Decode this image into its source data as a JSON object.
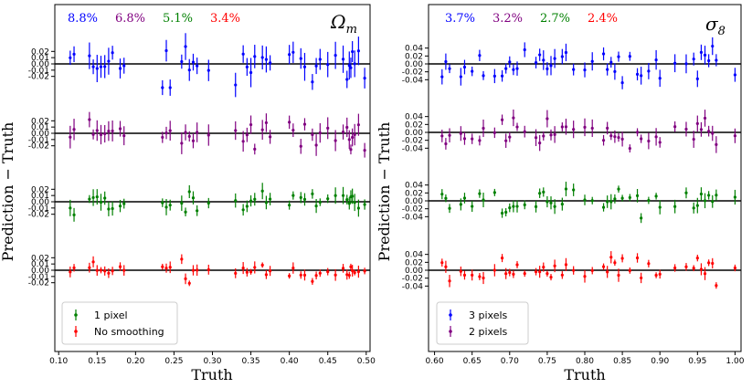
{
  "chart_data": [
    {
      "type": "scatter",
      "title": "Ωm",
      "title_main": "Ω",
      "title_sub": "m",
      "xlabel": "Truth",
      "ylabel": "Prediction − Truth",
      "xlim": [
        0.095,
        0.505
      ],
      "xticks": [
        "0.10",
        "0.15",
        "0.20",
        "0.25",
        "0.30",
        "0.35",
        "0.40",
        "0.45",
        "0.50"
      ],
      "xtick_values": [
        0.1,
        0.15,
        0.2,
        0.25,
        0.3,
        0.35,
        0.4,
        0.45,
        0.5
      ],
      "offset_ticks": [
        0.02,
        0.01,
        0.0,
        -0.01,
        -0.02
      ],
      "offset_tick_labels": [
        "0.02",
        "0.01",
        "0.00",
        "-0.01",
        "-0.02"
      ],
      "half_range": 0.038,
      "seed": 11,
      "errors": [
        {
          "label": "8.8%",
          "color": "#0000ff"
        },
        {
          "label": "6.8%",
          "color": "#800080"
        },
        {
          "label": "5.1%",
          "color": "#008000"
        },
        {
          "label": "3.4%",
          "color": "#ff0000"
        }
      ],
      "series": [
        {
          "name": "3 pixels",
          "color": "#0000ff",
          "scatter": 0.018,
          "err": 0.017
        },
        {
          "name": "2 pixels",
          "color": "#800080",
          "scatter": 0.014,
          "err": 0.013
        },
        {
          "name": "1 pixel",
          "color": "#008000",
          "scatter": 0.011,
          "err": 0.01
        },
        {
          "name": "No smoothing",
          "color": "#ff0000",
          "scatter": 0.008,
          "err": 0.007
        }
      ],
      "x": [
        0.115,
        0.12,
        0.14,
        0.145,
        0.15,
        0.155,
        0.16,
        0.165,
        0.17,
        0.18,
        0.185,
        0.235,
        0.24,
        0.245,
        0.26,
        0.265,
        0.27,
        0.275,
        0.28,
        0.295,
        0.33,
        0.34,
        0.345,
        0.35,
        0.355,
        0.365,
        0.37,
        0.375,
        0.4,
        0.405,
        0.415,
        0.42,
        0.43,
        0.435,
        0.44,
        0.45,
        0.46,
        0.47,
        0.475,
        0.478,
        0.48,
        0.482,
        0.485,
        0.49,
        0.498
      ],
      "legend": [
        "1 pixel",
        "No smoothing"
      ]
    },
    {
      "type": "scatter",
      "title": "σ8",
      "title_main": "σ",
      "title_sub": "8",
      "xlabel": "Truth",
      "ylabel": "Prediction − Truth",
      "xlim": [
        0.592,
        1.008
      ],
      "xticks": [
        "0.60",
        "0.65",
        "0.70",
        "0.75",
        "0.80",
        "0.85",
        "0.90",
        "0.95",
        "1.00"
      ],
      "xtick_values": [
        0.6,
        0.65,
        0.7,
        0.75,
        0.8,
        0.85,
        0.9,
        0.95,
        1.0
      ],
      "offset_ticks": [
        0.04,
        0.02,
        0.0,
        -0.02,
        -0.04
      ],
      "offset_tick_labels": [
        "0.04",
        "0.02",
        "0.00",
        "-0.02",
        "-0.04"
      ],
      "half_range": 0.06,
      "seed": 29,
      "errors": [
        {
          "label": "3.7%",
          "color": "#0000ff"
        },
        {
          "label": "3.2%",
          "color": "#800080"
        },
        {
          "label": "2.7%",
          "color": "#008000"
        },
        {
          "label": "2.4%",
          "color": "#ff0000"
        }
      ],
      "series": [
        {
          "name": "3 pixels",
          "color": "#0000ff",
          "scatter": 0.022,
          "err": 0.018
        },
        {
          "name": "2 pixels",
          "color": "#800080",
          "scatter": 0.019,
          "err": 0.016
        },
        {
          "name": "1 pixel",
          "color": "#008000",
          "scatter": 0.016,
          "err": 0.014
        },
        {
          "name": "No smoothing",
          "color": "#ff0000",
          "scatter": 0.014,
          "err": 0.012
        }
      ],
      "x": [
        0.61,
        0.615,
        0.62,
        0.635,
        0.64,
        0.65,
        0.66,
        0.665,
        0.68,
        0.69,
        0.695,
        0.7,
        0.705,
        0.71,
        0.72,
        0.735,
        0.74,
        0.745,
        0.75,
        0.755,
        0.76,
        0.77,
        0.775,
        0.785,
        0.8,
        0.81,
        0.825,
        0.83,
        0.835,
        0.84,
        0.845,
        0.85,
        0.86,
        0.87,
        0.875,
        0.885,
        0.895,
        0.9,
        0.92,
        0.935,
        0.945,
        0.95,
        0.955,
        0.96,
        0.965,
        0.97,
        0.975,
        1.0
      ],
      "legend": [
        "3 pixels",
        "2 pixels"
      ]
    }
  ]
}
